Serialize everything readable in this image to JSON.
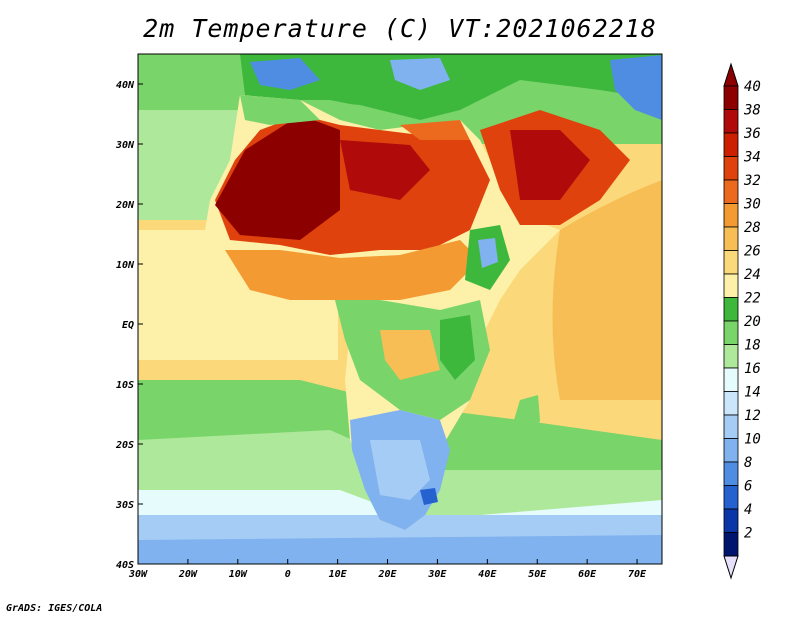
{
  "title": "2m Temperature (C) VT:2021062218",
  "footer": "GrADS: IGES/COLA",
  "map": {
    "lon_range": [
      -30,
      75
    ],
    "lat_range": [
      -40,
      45
    ],
    "lon_ticks": [
      {
        "value": -30,
        "label": "30W"
      },
      {
        "value": -20,
        "label": "20W"
      },
      {
        "value": -10,
        "label": "10W"
      },
      {
        "value": 0,
        "label": "0"
      },
      {
        "value": 10,
        "label": "10E"
      },
      {
        "value": 20,
        "label": "20E"
      },
      {
        "value": 30,
        "label": "30E"
      },
      {
        "value": 40,
        "label": "40E"
      },
      {
        "value": 50,
        "label": "50E"
      },
      {
        "value": 60,
        "label": "60E"
      },
      {
        "value": 70,
        "label": "70E"
      }
    ],
    "lat_ticks": [
      {
        "value": 40,
        "label": "40N"
      },
      {
        "value": 30,
        "label": "30N"
      },
      {
        "value": 20,
        "label": "20N"
      },
      {
        "value": 10,
        "label": "10N"
      },
      {
        "value": 0,
        "label": "EQ"
      },
      {
        "value": -10,
        "label": "10S"
      },
      {
        "value": -20,
        "label": "20S"
      },
      {
        "value": -30,
        "label": "30S"
      },
      {
        "value": -40,
        "label": "40S"
      }
    ]
  },
  "colorbar": {
    "labels": [
      "40",
      "38",
      "36",
      "34",
      "32",
      "30",
      "28",
      "26",
      "24",
      "22",
      "20",
      "18",
      "16",
      "14",
      "12",
      "10",
      "8",
      "6",
      "4",
      "2"
    ],
    "colors": [
      "#8c0000",
      "#b00a0a",
      "#cc2000",
      "#e0420d",
      "#ec6a1e",
      "#f49a33",
      "#f7be55",
      "#fbd87a",
      "#fdf0a8",
      "#3db83d",
      "#79d46a",
      "#aee89a",
      "#e6fbfb",
      "#cbe5fa",
      "#a5ccf5",
      "#7fb2ef",
      "#4f8de3",
      "#2562cf",
      "#0c36a8",
      "#00156e"
    ],
    "over_color": "#8c0000",
    "under_color": "#e6e0fb"
  }
}
